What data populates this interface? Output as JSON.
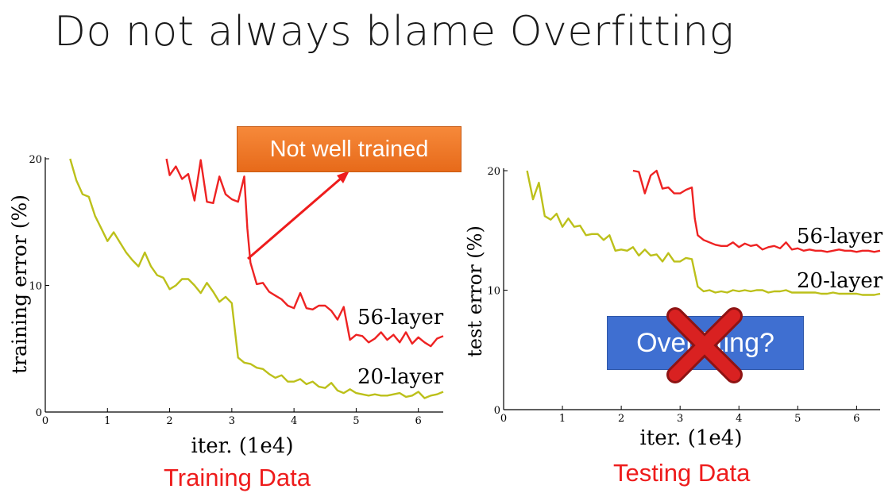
{
  "slide": {
    "title": "Do not always blame Overfitting",
    "callout_text": "Not well trained",
    "question_text": "Overfitting?",
    "left_caption": "Training Data",
    "right_caption": "Testing Data"
  },
  "colors": {
    "series_56": "#ee2222",
    "series_20": "#bcc01a",
    "caption": "#ee1c1c",
    "callout_bg": "#f07a2a",
    "question_bg": "#3f6fd1",
    "cross": "#d31f1f"
  },
  "icons": {
    "cross": "cross-mark-icon",
    "arrow": "arrow-icon"
  },
  "chart_data": [
    {
      "type": "line",
      "ylabel": "training error (%)",
      "xlabel": "iter. (1e4)",
      "xlim": [
        0,
        6.4
      ],
      "ylim": [
        0,
        20
      ],
      "x_ticks": [
        "0",
        "1",
        "2",
        "3",
        "4",
        "5",
        "6"
      ],
      "y_ticks": [
        "0",
        "10",
        "20"
      ],
      "series": [
        {
          "name": "56-layer",
          "x": [
            1.95,
            2.0,
            2.1,
            2.2,
            2.3,
            2.4,
            2.5,
            2.6,
            2.7,
            2.8,
            2.9,
            3.0,
            3.1,
            3.2,
            3.25,
            3.3,
            3.4,
            3.5,
            3.6,
            3.7,
            3.8,
            3.9,
            4.0,
            4.1,
            4.2,
            4.3,
            4.4,
            4.5,
            4.6,
            4.7,
            4.8,
            4.9,
            5.0,
            5.1,
            5.2,
            5.3,
            5.4,
            5.5,
            5.6,
            5.7,
            5.8,
            5.9,
            6.0,
            6.1,
            6.2,
            6.3,
            6.4
          ],
          "y": [
            20,
            18.7,
            19.4,
            18.4,
            18.8,
            16.7,
            19.9,
            16.6,
            16.5,
            18.6,
            17.2,
            16.8,
            16.6,
            18.6,
            14.5,
            11.8,
            10.1,
            10.2,
            9.5,
            9.2,
            8.9,
            8.4,
            8.2,
            9.4,
            8.2,
            8.1,
            8.4,
            8.4,
            8.0,
            7.3,
            8.3,
            5.7,
            6.1,
            6.0,
            5.5,
            5.8,
            6.3,
            5.7,
            6.1,
            5.5,
            6.3,
            5.4,
            5.9,
            5.5,
            5.2,
            5.8,
            6.0
          ]
        },
        {
          "name": "20-layer",
          "x": [
            0.4,
            0.5,
            0.6,
            0.7,
            0.8,
            0.9,
            1.0,
            1.1,
            1.2,
            1.3,
            1.4,
            1.5,
            1.6,
            1.7,
            1.8,
            1.9,
            2.0,
            2.1,
            2.2,
            2.3,
            2.4,
            2.5,
            2.6,
            2.7,
            2.8,
            2.9,
            3.0,
            3.1,
            3.2,
            3.3,
            3.4,
            3.5,
            3.6,
            3.7,
            3.8,
            3.9,
            4.0,
            4.1,
            4.2,
            4.3,
            4.4,
            4.5,
            4.6,
            4.7,
            4.8,
            4.9,
            5.0,
            5.1,
            5.2,
            5.3,
            5.4,
            5.5,
            5.6,
            5.7,
            5.8,
            5.9,
            6.0,
            6.1,
            6.2,
            6.3,
            6.4
          ],
          "y": [
            20,
            18.3,
            17.2,
            17.0,
            15.5,
            14.5,
            13.5,
            14.2,
            13.4,
            12.6,
            12.0,
            11.5,
            12.6,
            11.5,
            10.8,
            10.6,
            9.7,
            10.0,
            10.5,
            10.5,
            10.0,
            9.4,
            10.2,
            9.5,
            8.7,
            9.1,
            8.6,
            4.3,
            3.9,
            3.8,
            3.5,
            3.4,
            3.0,
            2.7,
            2.9,
            2.4,
            2.4,
            2.6,
            2.2,
            2.4,
            2.0,
            1.9,
            2.3,
            1.7,
            1.5,
            1.8,
            1.5,
            1.4,
            1.3,
            1.4,
            1.3,
            1.3,
            1.4,
            1.5,
            1.2,
            1.3,
            1.6,
            1.1,
            1.3,
            1.4,
            1.6
          ]
        }
      ]
    },
    {
      "type": "line",
      "ylabel": "test error (%)",
      "xlabel": "iter. (1e4)",
      "xlim": [
        0,
        6.4
      ],
      "ylim": [
        0,
        20
      ],
      "x_ticks": [
        "0",
        "1",
        "2",
        "3",
        "4",
        "5",
        "6"
      ],
      "y_ticks": [
        "0",
        "10",
        "20"
      ],
      "series": [
        {
          "name": "56-layer",
          "x": [
            2.2,
            2.3,
            2.4,
            2.5,
            2.6,
            2.7,
            2.8,
            2.9,
            3.0,
            3.1,
            3.2,
            3.25,
            3.3,
            3.4,
            3.5,
            3.6,
            3.7,
            3.8,
            3.9,
            4.0,
            4.1,
            4.2,
            4.3,
            4.4,
            4.5,
            4.6,
            4.7,
            4.8,
            4.9,
            5.0,
            5.1,
            5.2,
            5.3,
            5.4,
            5.5,
            5.6,
            5.7,
            5.8,
            5.9,
            6.0,
            6.1,
            6.2,
            6.3,
            6.4
          ],
          "y": [
            20,
            19.9,
            18.1,
            19.6,
            20.0,
            18.5,
            18.6,
            18.1,
            18.1,
            18.4,
            18.6,
            16.0,
            14.6,
            14.2,
            14.0,
            13.8,
            13.7,
            13.7,
            14.0,
            13.6,
            13.9,
            13.7,
            13.8,
            13.4,
            13.6,
            13.7,
            13.5,
            14.0,
            13.4,
            13.5,
            13.3,
            13.4,
            13.3,
            13.3,
            13.2,
            13.3,
            13.4,
            13.3,
            13.3,
            13.2,
            13.3,
            13.3,
            13.2,
            13.3
          ]
        },
        {
          "name": "20-layer",
          "x": [
            0.4,
            0.5,
            0.6,
            0.7,
            0.8,
            0.9,
            1.0,
            1.1,
            1.2,
            1.3,
            1.4,
            1.5,
            1.6,
            1.7,
            1.8,
            1.9,
            2.0,
            2.1,
            2.2,
            2.3,
            2.4,
            2.5,
            2.6,
            2.7,
            2.8,
            2.9,
            3.0,
            3.1,
            3.2,
            3.3,
            3.4,
            3.5,
            3.6,
            3.7,
            3.8,
            3.9,
            4.0,
            4.1,
            4.2,
            4.3,
            4.4,
            4.5,
            4.6,
            4.7,
            4.8,
            4.9,
            5.0,
            5.1,
            5.2,
            5.3,
            5.4,
            5.5,
            5.6,
            5.7,
            5.8,
            5.9,
            6.0,
            6.1,
            6.2,
            6.3,
            6.4
          ],
          "y": [
            20,
            17.6,
            19.0,
            16.2,
            15.9,
            16.4,
            15.3,
            16.0,
            15.3,
            15.4,
            14.6,
            14.7,
            14.7,
            14.2,
            14.6,
            13.3,
            13.4,
            13.3,
            13.6,
            12.9,
            13.4,
            12.9,
            13.0,
            12.4,
            13.1,
            12.4,
            12.4,
            12.7,
            12.6,
            10.3,
            9.9,
            10.0,
            9.8,
            9.9,
            9.8,
            10.0,
            9.9,
            10.0,
            9.9,
            10.0,
            10.0,
            9.8,
            9.9,
            9.9,
            10.0,
            9.8,
            9.8,
            9.8,
            9.8,
            9.8,
            9.7,
            9.7,
            9.8,
            9.7,
            9.7,
            9.7,
            9.7,
            9.6,
            9.6,
            9.6,
            9.7
          ]
        }
      ]
    }
  ]
}
